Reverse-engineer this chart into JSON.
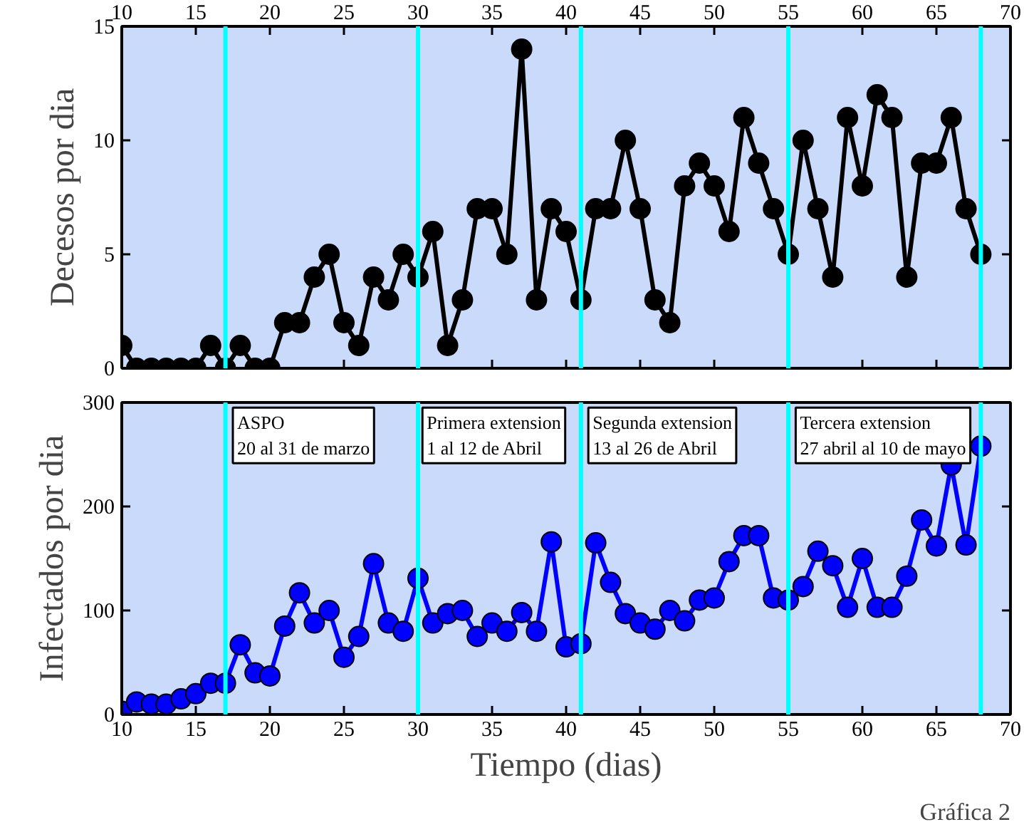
{
  "chart_data": [
    {
      "type": "line",
      "ylabel": "Decesos por dia",
      "tick_labels": "y",
      "xlim": [
        10,
        70
      ],
      "xticks": [
        10,
        15,
        20,
        25,
        30,
        35,
        40,
        45,
        50,
        55,
        60,
        65,
        70
      ],
      "x2lim": [
        10,
        70
      ],
      "x2ticks": [
        10,
        15,
        20,
        25,
        30,
        35,
        40,
        45,
        50,
        55,
        60,
        65,
        70
      ],
      "ylim": [
        0,
        15
      ],
      "yticks": [
        0,
        5,
        10,
        15
      ],
      "marker": "circle",
      "x": [
        10,
        11,
        12,
        13,
        14,
        15,
        16,
        17,
        18,
        19,
        20,
        21,
        22,
        23,
        24,
        25,
        26,
        27,
        28,
        29,
        30,
        31,
        32,
        33,
        34,
        35,
        36,
        37,
        38,
        39,
        40,
        41,
        42,
        43,
        44,
        45,
        46,
        47,
        48,
        49,
        50,
        51,
        52,
        53,
        54,
        55,
        56,
        57,
        58,
        59,
        60,
        61,
        62,
        63,
        64,
        65,
        66,
        67,
        68
      ],
      "series": [
        {
          "color": "#000000",
          "values": [
            1,
            0,
            0,
            0,
            0,
            0,
            1,
            0,
            1,
            0,
            0,
            2,
            2,
            4,
            5,
            2,
            1,
            4,
            3,
            5,
            4,
            6,
            1,
            3,
            7,
            7,
            5,
            14,
            3,
            7,
            6,
            3,
            7,
            7,
            10,
            7,
            3,
            2,
            8,
            9,
            8,
            6,
            11,
            9,
            7,
            5,
            10,
            7,
            4,
            11,
            8,
            12,
            11,
            4,
            9,
            9,
            11,
            7,
            5
          ]
        }
      ],
      "ref_lines": [
        {
          "axis": "x",
          "value": 17,
          "color": "#00ffff"
        },
        {
          "axis": "x",
          "value": 30,
          "color": "#00ffff"
        },
        {
          "axis": "x",
          "value": 41,
          "color": "#00ffff"
        },
        {
          "axis": "x",
          "value": 55,
          "color": "#00ffff"
        },
        {
          "axis": "x",
          "value": 68,
          "color": "#00ffff"
        }
      ]
    },
    {
      "type": "line",
      "xlabel": "Tiempo (dias)",
      "ylabel": "Infectados por dia",
      "xlim": [
        10,
        70
      ],
      "xticks": [
        10,
        15,
        20,
        25,
        30,
        35,
        40,
        45,
        50,
        55,
        60,
        65,
        70
      ],
      "ylim": [
        0,
        300
      ],
      "yticks": [
        0,
        100,
        200,
        300
      ],
      "marker": "circle",
      "x": [
        10,
        11,
        12,
        13,
        14,
        15,
        16,
        17,
        18,
        19,
        20,
        21,
        22,
        23,
        24,
        25,
        26,
        27,
        28,
        29,
        30,
        31,
        32,
        33,
        34,
        35,
        36,
        37,
        38,
        39,
        40,
        41,
        42,
        43,
        44,
        45,
        46,
        47,
        48,
        49,
        50,
        51,
        52,
        53,
        54,
        55,
        56,
        57,
        58,
        59,
        60,
        61,
        62,
        63,
        64,
        65,
        66,
        67,
        68
      ],
      "series": [
        {
          "color": "#0000ff",
          "values": [
            3,
            12,
            10,
            10,
            15,
            20,
            30,
            30,
            67,
            40,
            37,
            85,
            117,
            88,
            100,
            55,
            75,
            145,
            88,
            80,
            131,
            88,
            97,
            100,
            75,
            88,
            80,
            98,
            80,
            166,
            65,
            68,
            165,
            127,
            97,
            88,
            82,
            100,
            90,
            110,
            112,
            147,
            172,
            172,
            112,
            110,
            123,
            157,
            143,
            103,
            150,
            103,
            103,
            133,
            187,
            162,
            240,
            163,
            258
          ]
        }
      ],
      "ref_lines": [
        {
          "axis": "x",
          "value": 17,
          "color": "#00ffff"
        },
        {
          "axis": "x",
          "value": 30,
          "color": "#00ffff"
        },
        {
          "axis": "x",
          "value": 41,
          "color": "#00ffff"
        },
        {
          "axis": "x",
          "value": 55,
          "color": "#00ffff"
        },
        {
          "axis": "x",
          "value": 68,
          "color": "#00ffff"
        }
      ],
      "annotations": [
        {
          "text": "ASPO\n20 al 31 de marzo",
          "x": 17.5,
          "y": 295
        },
        {
          "text": "Primera extension\n1 al 12 de Abril",
          "x": 30.3,
          "y": 295
        },
        {
          "text": "Segunda extension\n13 al 26 de Abril",
          "x": 41.5,
          "y": 295
        },
        {
          "text": "Tercera extension\n27 abril al 10 de mayo",
          "x": 55.5,
          "y": 295
        },
        "Gráfica 2"
      ]
    }
  ]
}
